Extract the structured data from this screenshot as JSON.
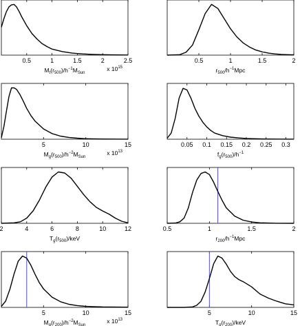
{
  "chart_data": [
    {
      "type": "line",
      "xlim": [
        0,
        2.5
      ],
      "xticks": [
        "0.5",
        "1",
        "1.5",
        "2",
        "2.5"
      ],
      "xtick_values": [
        0.5,
        1,
        1.5,
        2,
        2.5
      ],
      "xlabel": {
        "base": "M",
        "sub": "t",
        "rest": "(r",
        "sub2": "500",
        "mid": ")/h",
        "sup": "−1",
        "tail": "M",
        "sub3": "Sun"
      },
      "multiplier": {
        "text": "x 10",
        "exp": "15"
      },
      "x": [
        0,
        0.05,
        0.1,
        0.15,
        0.2,
        0.25,
        0.3,
        0.35,
        0.4,
        0.5,
        0.6,
        0.7,
        0.8,
        0.9,
        1.0,
        1.2,
        1.4,
        1.6,
        1.8,
        2.0,
        2.2,
        2.5
      ],
      "y": [
        0.55,
        0.72,
        0.86,
        0.95,
        0.99,
        1.0,
        0.95,
        0.86,
        0.76,
        0.58,
        0.43,
        0.32,
        0.23,
        0.17,
        0.12,
        0.07,
        0.04,
        0.025,
        0.015,
        0.01,
        0.006,
        0.003
      ],
      "vline": null
    },
    {
      "type": "line",
      "xlim": [
        0,
        2
      ],
      "xticks": [
        "0.5",
        "1",
        "1.5",
        "2"
      ],
      "xtick_values": [
        0.5,
        1,
        1.5,
        2
      ],
      "xlabel": {
        "base": "r",
        "sub": "500",
        "rest": "/h",
        "sup": "−1",
        "tail": "Mpc"
      },
      "multiplier": null,
      "x": [
        0,
        0.2,
        0.3,
        0.4,
        0.5,
        0.6,
        0.7,
        0.8,
        0.9,
        1.0,
        1.1,
        1.2,
        1.3,
        1.4,
        1.5,
        1.6,
        1.7,
        1.8,
        1.9,
        2.0
      ],
      "y": [
        0.0,
        0.01,
        0.06,
        0.2,
        0.5,
        0.82,
        1.0,
        0.92,
        0.72,
        0.52,
        0.36,
        0.24,
        0.16,
        0.1,
        0.065,
        0.04,
        0.025,
        0.015,
        0.01,
        0.005
      ],
      "vline": null
    },
    {
      "type": "line",
      "xlim": [
        0,
        15
      ],
      "xticks": [
        "5",
        "10",
        "15"
      ],
      "xtick_values": [
        5,
        10,
        15
      ],
      "xlabel": {
        "base": "M",
        "sub": "g",
        "rest": "(r",
        "sub2": "500",
        "mid": ")/h",
        "sup": "−2",
        "tail": "M",
        "sub3": "Sun"
      },
      "multiplier": {
        "text": "x 10",
        "exp": "13"
      },
      "x": [
        0,
        0.3,
        0.6,
        0.9,
        1.2,
        1.5,
        1.8,
        2.2,
        2.6,
        3.0,
        3.5,
        4,
        5,
        6,
        7,
        8,
        9,
        10,
        12,
        15
      ],
      "y": [
        0.03,
        0.25,
        0.55,
        0.83,
        1.0,
        1.0,
        0.97,
        0.87,
        0.74,
        0.6,
        0.46,
        0.35,
        0.2,
        0.11,
        0.06,
        0.035,
        0.02,
        0.01,
        0.004,
        0.001
      ],
      "vline": null
    },
    {
      "type": "line",
      "xlim": [
        0,
        0.32
      ],
      "xticks": [
        "0.05",
        "0.1",
        "0.15",
        "0.2",
        "0.25",
        "0.3"
      ],
      "xtick_values": [
        0.05,
        0.1,
        0.15,
        0.2,
        0.25,
        0.3
      ],
      "xlabel": {
        "base": "f",
        "sub": "g",
        "rest": "(r",
        "sub2": "500",
        "mid": ")/h",
        "sup": "−1",
        "tail": ""
      },
      "multiplier": null,
      "x": [
        0,
        0.01,
        0.02,
        0.03,
        0.04,
        0.05,
        0.06,
        0.07,
        0.08,
        0.09,
        0.1,
        0.11,
        0.12,
        0.14,
        0.16,
        0.18,
        0.2,
        0.24,
        0.28,
        0.32
      ],
      "y": [
        0.02,
        0.12,
        0.4,
        0.8,
        0.99,
        0.96,
        0.8,
        0.6,
        0.45,
        0.33,
        0.24,
        0.17,
        0.12,
        0.07,
        0.04,
        0.025,
        0.015,
        0.006,
        0.003,
        0.001
      ],
      "vline": null
    },
    {
      "type": "line",
      "xlim": [
        2,
        12
      ],
      "xticks": [
        "2",
        "4",
        "6",
        "8",
        "10",
        "12"
      ],
      "xtick_values": [
        2,
        4,
        6,
        8,
        10,
        12
      ],
      "xlabel": {
        "base": "T",
        "sub": "g",
        "rest": "(r",
        "sub2": "500",
        "mid": ")/keV",
        "sup": "",
        "tail": ""
      },
      "multiplier": null,
      "x": [
        2,
        3,
        3.5,
        4,
        4.5,
        5,
        5.5,
        6,
        6.5,
        7,
        7.5,
        8,
        8.5,
        9,
        9.5,
        10,
        10.5,
        11,
        11.5,
        12
      ],
      "y": [
        0.0,
        0.01,
        0.03,
        0.1,
        0.24,
        0.45,
        0.7,
        0.9,
        1.0,
        0.98,
        0.88,
        0.72,
        0.56,
        0.42,
        0.31,
        0.24,
        0.18,
        0.1,
        0.04,
        0.01
      ],
      "vline": null
    },
    {
      "type": "line",
      "xlim": [
        0.5,
        2
      ],
      "xticks": [
        "0.5",
        "1",
        "1.5",
        "2"
      ],
      "xtick_values": [
        0.5,
        1,
        1.5,
        2
      ],
      "xlabel": {
        "base": "r",
        "sub": "200",
        "rest": "/h",
        "sup": "−1",
        "tail": "Mpc"
      },
      "multiplier": null,
      "x": [
        0.5,
        0.6,
        0.65,
        0.7,
        0.75,
        0.8,
        0.85,
        0.9,
        0.95,
        1.0,
        1.05,
        1.1,
        1.15,
        1.2,
        1.3,
        1.4,
        1.5,
        1.6,
        1.8,
        2.0
      ],
      "y": [
        0.0,
        0.005,
        0.03,
        0.1,
        0.3,
        0.6,
        0.84,
        0.97,
        1.0,
        0.95,
        0.8,
        0.62,
        0.45,
        0.3,
        0.14,
        0.06,
        0.025,
        0.01,
        0.002,
        0.0
      ],
      "vline": 1.1
    },
    {
      "type": "line",
      "xlim": [
        0,
        15
      ],
      "xticks": [
        "5",
        "10",
        "15"
      ],
      "xtick_values": [
        5,
        10,
        15
      ],
      "xlabel": {
        "base": "M",
        "sub": "g",
        "rest": "(r",
        "sub2": "200",
        "mid": ")/h",
        "sup": "−2",
        "tail": "M",
        "sub3": "Sun"
      },
      "multiplier": {
        "text": "x 10",
        "exp": "13"
      },
      "x": [
        0,
        0.5,
        1.0,
        1.5,
        2.0,
        2.5,
        3.0,
        3.5,
        4.0,
        4.5,
        5,
        6,
        7,
        8,
        9,
        10,
        11,
        12,
        13,
        15
      ],
      "y": [
        0.02,
        0.12,
        0.35,
        0.65,
        0.9,
        1.0,
        0.96,
        0.82,
        0.64,
        0.48,
        0.36,
        0.2,
        0.11,
        0.06,
        0.035,
        0.02,
        0.015,
        0.01,
        0.008,
        0.004
      ],
      "vline": 3.0
    },
    {
      "type": "line",
      "xlim": [
        0,
        15
      ],
      "xticks": [
        "5",
        "10",
        "15"
      ],
      "xtick_values": [
        5,
        10,
        15
      ],
      "xlabel": {
        "base": "T",
        "sub": "g",
        "rest": "(r",
        "sub2": "200",
        "mid": ")/keV",
        "sup": "",
        "tail": ""
      },
      "multiplier": null,
      "x": [
        0,
        2,
        3,
        3.5,
        4,
        4.5,
        5,
        5.5,
        6,
        6.5,
        7,
        7.5,
        8,
        8.5,
        9,
        10,
        11,
        12,
        13,
        14,
        15
      ],
      "y": [
        0.0,
        0.0,
        0.01,
        0.04,
        0.12,
        0.3,
        0.56,
        0.85,
        1.0,
        0.96,
        0.84,
        0.7,
        0.6,
        0.54,
        0.5,
        0.4,
        0.26,
        0.18,
        0.12,
        0.07,
        0.05
      ],
      "vline": 5.0
    }
  ],
  "style": {
    "line_color": "#000000",
    "vline_color": "#4a4ad0",
    "axis_color": "#000000"
  }
}
